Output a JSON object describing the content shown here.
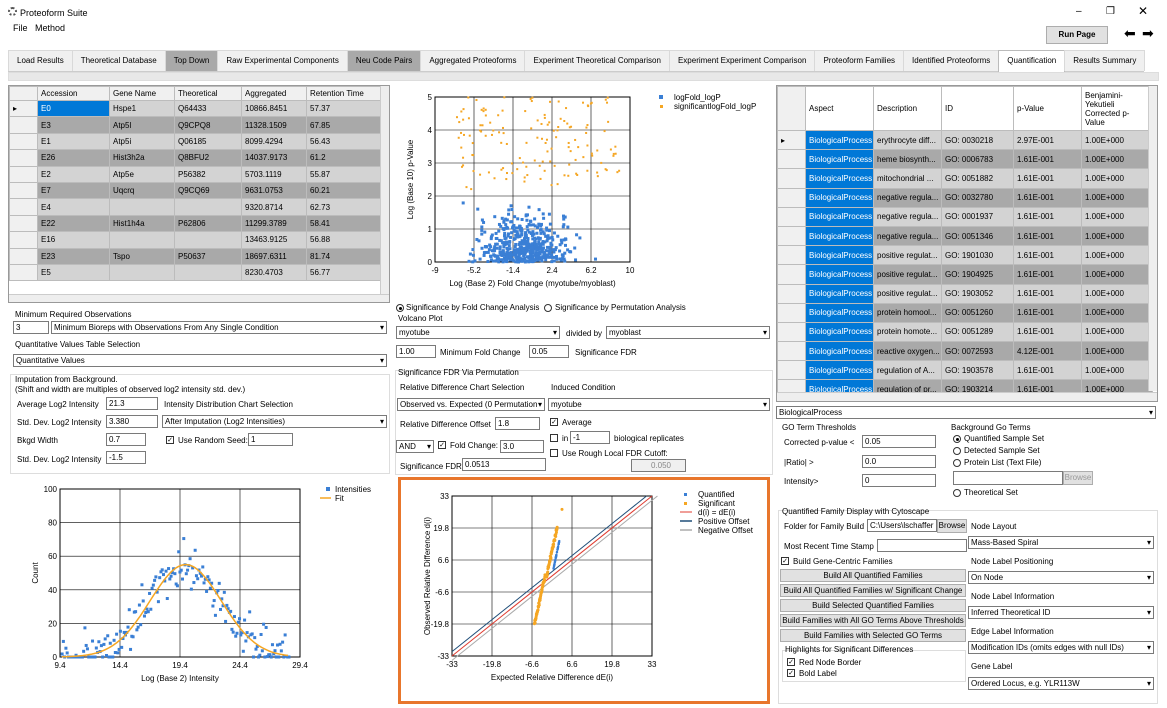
{
  "app": {
    "title": "Proteoform Suite",
    "menu": [
      "File",
      "Method"
    ],
    "run_page": "Run Page"
  },
  "tabs": [
    {
      "label": "Load Results",
      "dark": false
    },
    {
      "label": "Theoretical Database",
      "dark": false
    },
    {
      "label": "Top Down",
      "dark": true
    },
    {
      "label": "Raw Experimental Components",
      "dark": false
    },
    {
      "label": "Neu Code Pairs",
      "dark": true
    },
    {
      "label": "Aggregated Proteoforms",
      "dark": false
    },
    {
      "label": "Experiment Theoretical Comparison",
      "dark": false
    },
    {
      "label": "Experiment Experiment Comparison",
      "dark": false
    },
    {
      "label": "Proteoform Families",
      "dark": false
    },
    {
      "label": "Identified Proteoforms",
      "dark": false
    },
    {
      "label": "Quantification",
      "dark": false,
      "active": true
    },
    {
      "label": "Results Summary",
      "dark": false
    }
  ],
  "left_table": {
    "headers": [
      "Accession",
      "Gene Name",
      "Theoretical",
      "Aggregated",
      "Retention Time"
    ],
    "rows": [
      [
        "E0",
        "Hspe1",
        "Q64433",
        "10866.8451",
        "57.37"
      ],
      [
        "E3",
        "Atp5l",
        "Q9CPQ8",
        "11328.1509",
        "67.85"
      ],
      [
        "E1",
        "Atp5i",
        "Q06185",
        "8099.4294",
        "56.43"
      ],
      [
        "E26",
        "Hist3h2a",
        "Q8BFU2",
        "14037.9173",
        "61.2"
      ],
      [
        "E2",
        "Atp5e",
        "P56382",
        "5703.1119",
        "55.87"
      ],
      [
        "E7",
        "Uqcrq",
        "Q9CQ69",
        "9631.0753",
        "60.21"
      ],
      [
        "E4",
        "",
        "",
        "9320.8714",
        "62.73"
      ],
      [
        "E22",
        "Hist1h4a",
        "P62806",
        "11299.3789",
        "58.41"
      ],
      [
        "E16",
        "",
        "",
        "13463.9125",
        "56.88"
      ],
      [
        "E23",
        "Tspo",
        "P50637",
        "18697.6311",
        "81.74"
      ],
      [
        "E5",
        "",
        "",
        "8230.4703",
        "56.77"
      ]
    ]
  },
  "left_controls": {
    "min_obs_label": "Minimum Required Observations",
    "min_obs_value": "3",
    "min_obs_select": "Minimum Bioreps with Observations From Any Single Condition",
    "qv_label": "Quantitative Values Table Selection",
    "qv_select": "Quantitative Values",
    "imp_label1": "Imputation from Background.",
    "imp_label2": "(Shift and width are multiples of observed log2 intensity std. dev.)",
    "avg_label": "Average Log2 Intensity",
    "avg_value": "21.3",
    "std_label": "Std. Dev. Log2 Intensity",
    "std_value": "3.380",
    "idc_label": "Intensity Distribution Chart Selection",
    "idc_select": "After Imputation (Log2 Intensities)",
    "bkgd_label": "Bkgd Width",
    "bkgd_value": "0.7",
    "seed_label": "Use Random Seed:",
    "seed_value": "1",
    "stdbk_label": "Std. Dev. Log2 Intensity",
    "stdbk_value": "-1.5"
  },
  "volcano_controls": {
    "radio1": "Significance by Fold Change Analysis",
    "radio2": "Significance by Permutation Analysis",
    "vp_label": "Volcano Plot",
    "num_select": "myotube",
    "divided_by": "divided by",
    "den_select": "myoblast",
    "mfc_value": "1.00",
    "mfc_label": "Minimum Fold Change",
    "fdr_value": "0.05",
    "fdr_label": "Significance FDR",
    "perm_label": "Significance FDR Via Permutation",
    "rdcs_label": "Relative Difference Chart Selection",
    "ic_label": "Induced Condition",
    "rdcs_select": "Observed vs. Expected (0 Permutation",
    "ic_select": "myotube",
    "rdo_label": "Relative Difference Offset",
    "rdo_value": "1.8",
    "avg_chk": "Average",
    "in_label": "in",
    "in_value": "-1",
    "bio_label": "biological replicates",
    "and_value": "AND",
    "fc_chk": "Fold Change:",
    "fc_value": "3.0",
    "rough_chk": "Use Rough Local FDR Cutoff:",
    "sfdr_label": "Significance FDR",
    "sfdr_value": "0.0513",
    "cutoff_value": "0.050"
  },
  "right_table": {
    "headers": [
      "Aspect",
      "Description",
      "ID",
      "p-Value",
      "Benjamini-Yekutieli Corrected p-Value"
    ],
    "rows": [
      [
        "BiologicalProcess",
        "erythrocyte diff...",
        "GO: 0030218",
        "2.97E-001",
        "1.00E+000"
      ],
      [
        "BiologicalProcess",
        "heme biosynth...",
        "GO: 0006783",
        "1.61E-001",
        "1.00E+000"
      ],
      [
        "BiologicalProcess",
        "mitochondrial ...",
        "GO: 0051882",
        "1.61E-001",
        "1.00E+000"
      ],
      [
        "BiologicalProcess",
        "negative regula...",
        "GO: 0032780",
        "1.61E-001",
        "1.00E+000"
      ],
      [
        "BiologicalProcess",
        "negative regula...",
        "GO: 0001937",
        "1.61E-001",
        "1.00E+000"
      ],
      [
        "BiologicalProcess",
        "negative regula...",
        "GO: 0051346",
        "1.61E-001",
        "1.00E+000"
      ],
      [
        "BiologicalProcess",
        "positive regulat...",
        "GO: 1901030",
        "1.61E-001",
        "1.00E+000"
      ],
      [
        "BiologicalProcess",
        "positive regulat...",
        "GO: 1904925",
        "1.61E-001",
        "1.00E+000"
      ],
      [
        "BiologicalProcess",
        "positive regulat...",
        "GO: 1903052",
        "1.61E-001",
        "1.00E+000"
      ],
      [
        "BiologicalProcess",
        "protein homool...",
        "GO: 0051260",
        "1.61E-001",
        "1.00E+000"
      ],
      [
        "BiologicalProcess",
        "protein homote...",
        "GO: 0051289",
        "1.61E-001",
        "1.00E+000"
      ],
      [
        "BiologicalProcess",
        "reactive oxygen...",
        "GO: 0072593",
        "4.12E-001",
        "1.00E+000"
      ],
      [
        "BiologicalProcess",
        "regulation of A...",
        "GO: 1903578",
        "1.61E-001",
        "1.00E+000"
      ],
      [
        "BiologicalProcess",
        "regulation of pr...",
        "GO: 1903214",
        "1.61E-001",
        "1.00E+000"
      ]
    ]
  },
  "go_controls": {
    "aspect_select": "BiologicalProcess",
    "thr_label": "GO Term Thresholds",
    "cp_label": "Corrected p-value <",
    "cp_value": "0.05",
    "ratio_label": "|Ratio| >",
    "ratio_value": "0.0",
    "int_label": "Intensity>",
    "int_value": "0",
    "bg_label": "Background Go Terms",
    "bg_opts": [
      "Quantified Sample Set",
      "Detected Sample Set",
      "Protein List (Text File)"
    ],
    "browse": "Browse",
    "theo_set": "Theoretical Set"
  },
  "cyto": {
    "label": "Quantified Family Display with Cytoscape",
    "folder_label": "Folder for Family Build",
    "folder_value": "C:\\Users\\lschaffer",
    "browse": "Browse",
    "mrts_label": "Most Recent Time Stamp",
    "gene_centric": "Build Gene-Centric Families",
    "buttons": [
      "Build All Quantified Families",
      "Build All Quantified Families w/ Significant Change",
      "Build Selected Quantified Families",
      "Build Families with All GO Terms Above Thresholds",
      "Build Families with Selected GO Terms"
    ],
    "hl_label": "Highlights for Significant Differences",
    "red_border": "Red Node Border",
    "bold_label": "Bold Label",
    "node_layout_label": "Node Layout",
    "node_layout": "Mass-Based Spiral",
    "nlp_label": "Node Label Positioning",
    "nlp": "On Node",
    "nli_label": "Node Label Information",
    "nli": "Inferred Theoretical ID",
    "eli_label": "Edge Label Information",
    "eli": "Modification IDs (omits edges with null IDs)",
    "gl_label": "Gene Label",
    "gl": "Ordered Locus, e.g. YLR113W"
  },
  "colors": {
    "blue": "#3a7fd5",
    "orange": "#f5a623",
    "red": "#e03c31",
    "navy": "#1f4e79",
    "gray": "#aaaaaa",
    "highlight": "#e8762c"
  },
  "chart_data": [
    {
      "type": "scatter",
      "title": "",
      "xlabel": "Log (Base 2) Fold Change (myotube/myoblast)",
      "ylabel": "Log (Base 10) p-Value",
      "xlim": [
        -9,
        10
      ],
      "ylim": [
        0,
        5
      ],
      "xticks": [
        "-9",
        "-5.2",
        "-1.4",
        "2.4",
        "6.2",
        "10"
      ],
      "yticks": [
        "0",
        "1",
        "2",
        "3",
        "4",
        "5"
      ],
      "legend": [
        "logFold_logP",
        "significantlogFold_logP"
      ],
      "legend_position": "top-right",
      "grid": true,
      "series": [
        {
          "name": "logFold_logP",
          "color": "#3a7fd5",
          "count": 520,
          "x_range": [
            -6,
            8
          ],
          "y_range": [
            0,
            2.1
          ]
        },
        {
          "name": "significantlogFold_logP",
          "color": "#f5a623",
          "count": 140,
          "x_range": [
            -7,
            9
          ],
          "y_range": [
            2.2,
            5
          ]
        }
      ]
    },
    {
      "type": "scatter",
      "title": "",
      "xlabel": "Log (Base 2) Intensity",
      "ylabel": "Count",
      "xlim": [
        9.4,
        32
      ],
      "ylim": [
        0,
        100
      ],
      "xticks": [
        "9.4",
        "14.4",
        "19.4",
        "24.4",
        "29.4"
      ],
      "yticks": [
        "0",
        "20",
        "40",
        "60",
        "80",
        "100"
      ],
      "legend": [
        "Intensities",
        "Fit"
      ],
      "legend_position": "top-right",
      "grid": true,
      "fit": {
        "mean": 21.3,
        "sd": 3.38,
        "peak": 55
      },
      "series": [
        {
          "name": "Intensities",
          "color": "#3a7fd5",
          "count": 180
        },
        {
          "name": "Fit",
          "color": "#f5a623"
        }
      ]
    },
    {
      "type": "scatter",
      "title": "",
      "xlabel": "Expected Relative Difference dE(i)",
      "ylabel": "Observed Relative Difference d(i)",
      "xlim": [
        -33,
        33
      ],
      "ylim": [
        -33,
        33
      ],
      "xticks": [
        "-33",
        "-19.8",
        "-6.6",
        "6.6",
        "19.8",
        "33"
      ],
      "yticks": [
        "-33",
        "-19.8",
        "-6.6",
        "6.6",
        "19.8",
        "33"
      ],
      "legend": [
        "Quantified",
        "Significant",
        "d(i) = dE(i)",
        "Positive Offset",
        "Negative Offset"
      ],
      "legend_position": "top-right",
      "grid": true,
      "offset": 1.8
    }
  ]
}
